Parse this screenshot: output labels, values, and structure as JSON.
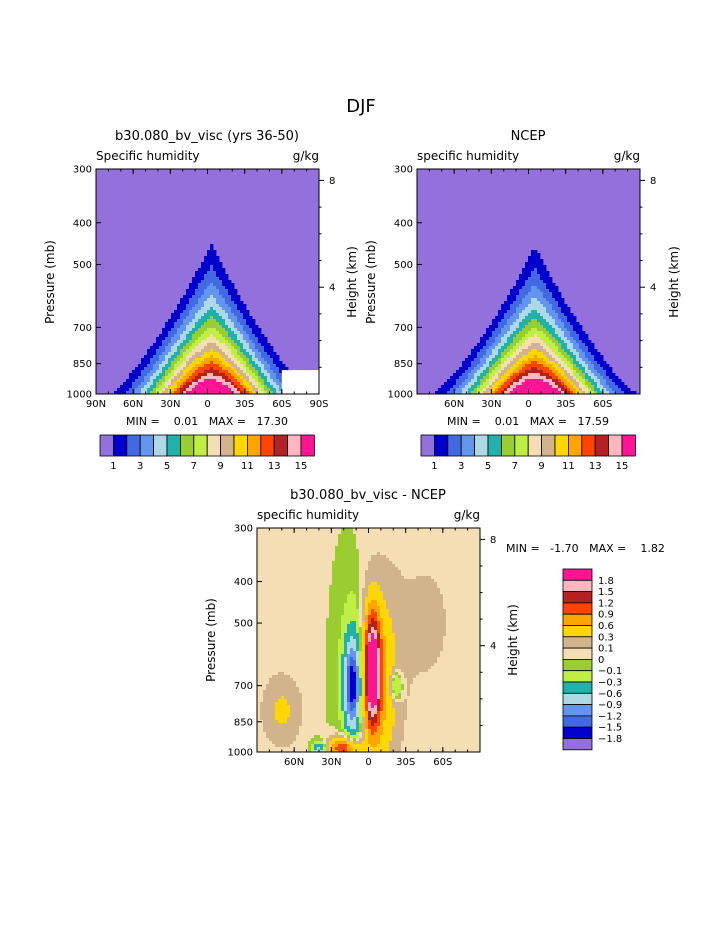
{
  "page_title": "DJF",
  "colors": {
    "pos_scale": [
      "#9370db",
      "#0000cd",
      "#4169e1",
      "#6495ed",
      "#add8e6",
      "#20b2aa",
      "#9acd32",
      "#bfef45",
      "#f5deb3",
      "#d2b48c",
      "#ffd700",
      "#ffa500",
      "#ff4500",
      "#b22222",
      "#ffb6c1",
      "#ff1493"
    ],
    "diff_scale": [
      "#9370db",
      "#0000cd",
      "#4169e1",
      "#6495ed",
      "#add8e6",
      "#20b2aa",
      "#bfef45",
      "#9acd32",
      "#f5deb3",
      "#d2b48c",
      "#ffd700",
      "#ffa500",
      "#ff4500",
      "#b22222",
      "#ffb6c1",
      "#ff1493"
    ]
  },
  "chart_data": [
    {
      "type": "contour",
      "id": "model",
      "title": "b30.080_bv_visc (yrs 36-50)",
      "left_label": "Specific humidity",
      "right_label": "g/kg",
      "ylabel": "Pressure (mb)",
      "ylabel_right": "Height (km)",
      "x_ticks": [
        "90N",
        "60N",
        "30N",
        "0",
        "30S",
        "60S",
        "90S"
      ],
      "x_tick_values": [
        90,
        60,
        30,
        0,
        -30,
        -60,
        -90
      ],
      "xlim": [
        90,
        -90
      ],
      "y_ticks": [
        "300",
        "400",
        "500",
        "700",
        "850",
        "1000"
      ],
      "y_tick_values": [
        300,
        400,
        500,
        700,
        850,
        1000
      ],
      "ylim": [
        300,
        1000
      ],
      "height_ticks": [
        "8",
        "4"
      ],
      "height_tick_values": [
        8,
        4
      ],
      "stats": "MIN =    0.01   MAX =   17.30",
      "levels": [
        1,
        2,
        3,
        4,
        5,
        6,
        7,
        8,
        9,
        10,
        11,
        12,
        13,
        14,
        15
      ],
      "colorbar_labels": [
        "1",
        "3",
        "5",
        "7",
        "9",
        "11",
        "13",
        "15"
      ],
      "field": {
        "peak_value": 17.3,
        "peak_lat": -3,
        "top_pressure": 355,
        "half_width": 60,
        "ymin_mask": [
          [
            -60,
            -90
          ],
          [
            880,
            1000
          ]
        ]
      }
    },
    {
      "type": "contour",
      "id": "obs",
      "title": "NCEP",
      "left_label": "specific humidity",
      "right_label": "g/kg",
      "ylabel": "Pressure (mb)",
      "ylabel_right": "Height (km)",
      "x_ticks": [
        "60N",
        "30N",
        "0",
        "30S",
        "60S"
      ],
      "x_tick_values": [
        60,
        30,
        0,
        -30,
        -60
      ],
      "xlim": [
        90,
        -90
      ],
      "y_ticks": [
        "300",
        "400",
        "500",
        "700",
        "850",
        "1000"
      ],
      "y_tick_values": [
        300,
        400,
        500,
        700,
        850,
        1000
      ],
      "ylim": [
        300,
        1000
      ],
      "height_ticks": [
        "8",
        "4"
      ],
      "height_tick_values": [
        8,
        4
      ],
      "stats": "MIN =    0.01   MAX =   17.59",
      "levels": [
        1,
        2,
        3,
        4,
        5,
        6,
        7,
        8,
        9,
        10,
        11,
        12,
        13,
        14,
        15
      ],
      "colorbar_labels": [
        "1",
        "3",
        "5",
        "7",
        "9",
        "11",
        "13",
        "15"
      ],
      "field": {
        "peak_value": 17.59,
        "peak_lat": -5,
        "top_pressure": 365,
        "half_width": 62
      }
    },
    {
      "type": "contour",
      "id": "diff",
      "title": "b30.080_bv_visc - NCEP",
      "left_label": "specific humidity",
      "right_label": "g/kg",
      "ylabel": "Pressure (mb)",
      "ylabel_right": "Height (km)",
      "x_ticks": [
        "60N",
        "30N",
        "0",
        "30S",
        "60S"
      ],
      "x_tick_values": [
        60,
        30,
        0,
        -30,
        -60
      ],
      "xlim": [
        90,
        -90
      ],
      "y_ticks": [
        "300",
        "400",
        "500",
        "700",
        "850",
        "1000"
      ],
      "y_tick_values": [
        300,
        400,
        500,
        700,
        850,
        1000
      ],
      "ylim": [
        300,
        1000
      ],
      "height_ticks": [
        "8",
        "4"
      ],
      "height_tick_values": [
        8,
        4
      ],
      "stats": "MIN =   -1.70   MAX =    1.82",
      "levels": [
        -1.8,
        -1.5,
        -1.2,
        -0.9,
        -0.6,
        -0.3,
        -0.1,
        0,
        0.1,
        0.3,
        0.6,
        0.9,
        1.2,
        1.5,
        1.8
      ],
      "colorbar_labels": [
        "1.8",
        "1.5",
        "1.2",
        "0.9",
        "0.6",
        "0.3",
        "0.1",
        "0",
        "−0.1",
        "−0.3",
        "−0.6",
        "−0.9",
        "−1.2",
        "−1.5",
        "−1.8"
      ]
    }
  ]
}
